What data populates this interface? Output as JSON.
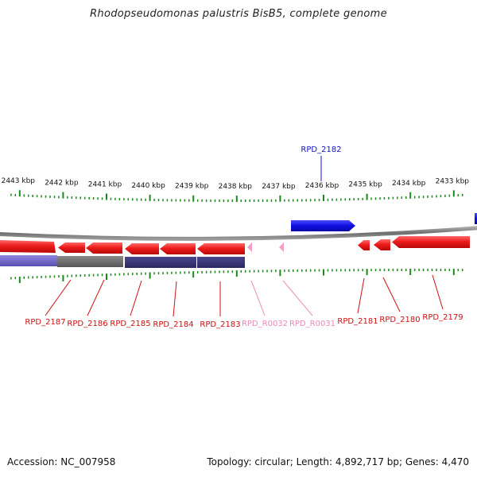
{
  "title": "Rhodopseudomonas palustris BisB5, complete genome",
  "accession_label": "Accession: NC_007958",
  "summary_label": "Topology: circular; Length: 4,892,717 bp; Genes: 4,470",
  "colors": {
    "forward_gene": "#1010e0",
    "reverse_gene": "#ee1c1c",
    "rna": "#f2a0c8",
    "backbone": "#888888",
    "tick": "#1a8a1a",
    "reverse_label": "#cc1111",
    "rna_label": "#ee88bb",
    "forward_label": "#1010cc"
  },
  "scale": {
    "unit": "kbp",
    "major_kbp": [
      2443,
      2442,
      2441,
      2440,
      2439,
      2438,
      2437,
      2436,
      2435,
      2434,
      2433
    ],
    "major_labels": [
      "2443 kbp",
      "2442 kbp",
      "2441 kbp",
      "2440 kbp",
      "2439 kbp",
      "2438 kbp",
      "2437 kbp",
      "2436 kbp",
      "2435 kbp",
      "2434 kbp",
      "2433 kbp"
    ]
  },
  "genes": [
    {
      "name": "RPD_2187",
      "strand": "reverse",
      "type": "CDS",
      "label": "RPD_2187"
    },
    {
      "name": "RPD_2186",
      "strand": "reverse",
      "type": "CDS",
      "label": "RPD_2186"
    },
    {
      "name": "RPD_2185",
      "strand": "reverse",
      "type": "CDS",
      "label": "RPD_2185"
    },
    {
      "name": "RPD_2184",
      "strand": "reverse",
      "type": "CDS",
      "label": "RPD_2184"
    },
    {
      "name": "RPD_2183",
      "strand": "reverse",
      "type": "CDS",
      "label": "RPD_2183"
    },
    {
      "name": "RPD_R0032",
      "strand": "reverse",
      "type": "RNA",
      "label": "RPD_R0032"
    },
    {
      "name": "RPD_R0031",
      "strand": "reverse",
      "type": "RNA",
      "label": "RPD_R0031"
    },
    {
      "name": "RPD_2182",
      "strand": "forward",
      "type": "CDS",
      "label": "RPD_2182"
    },
    {
      "name": "RPD_2181",
      "strand": "reverse",
      "type": "CDS",
      "label": "RPD_2181"
    },
    {
      "name": "RPD_2180",
      "strand": "reverse",
      "type": "CDS",
      "label": "RPD_2180"
    },
    {
      "name": "RPD_2179",
      "strand": "reverse",
      "type": "CDS",
      "label": "RPD_2179"
    }
  ]
}
